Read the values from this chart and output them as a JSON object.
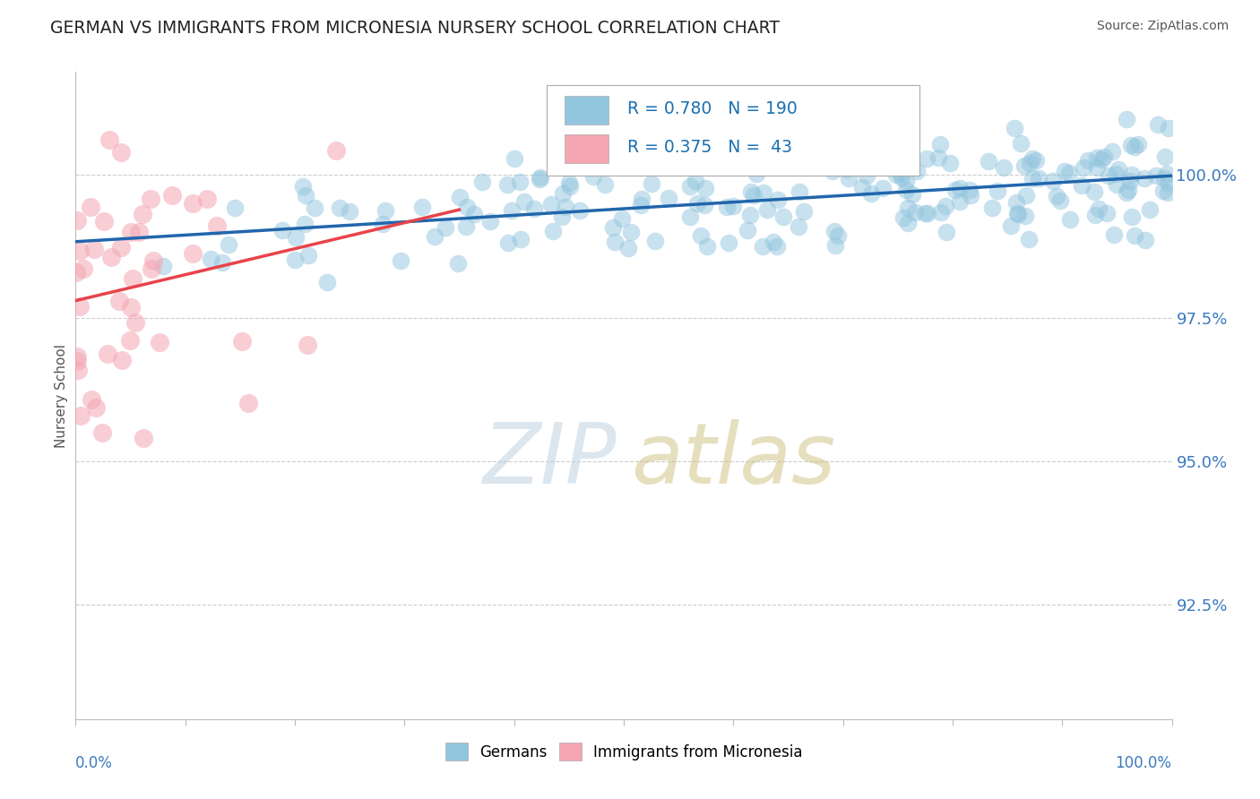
{
  "title": "GERMAN VS IMMIGRANTS FROM MICRONESIA NURSERY SCHOOL CORRELATION CHART",
  "source": "Source: ZipAtlas.com",
  "ylabel": "Nursery School",
  "ytick_values": [
    92.5,
    95.0,
    97.5,
    100.0
  ],
  "legend_blue_r": "R = 0.780",
  "legend_blue_n": "N = 190",
  "legend_pink_r": "R = 0.375",
  "legend_pink_n": "N =  43",
  "blue_color": "#92c5de",
  "pink_color": "#f4a6b2",
  "blue_line_color": "#2166ac",
  "pink_line_color": "#e8434a",
  "title_color": "#222222",
  "legend_value_color": "#1a6faf",
  "axis_label_color": "#3a7abf",
  "xlim": [
    0.0,
    100.0
  ],
  "ylim": [
    90.5,
    101.8
  ],
  "blue_seed": 42,
  "pink_seed": 7,
  "grid_color": "#cccccc",
  "spine_color": "#bbbbbb"
}
